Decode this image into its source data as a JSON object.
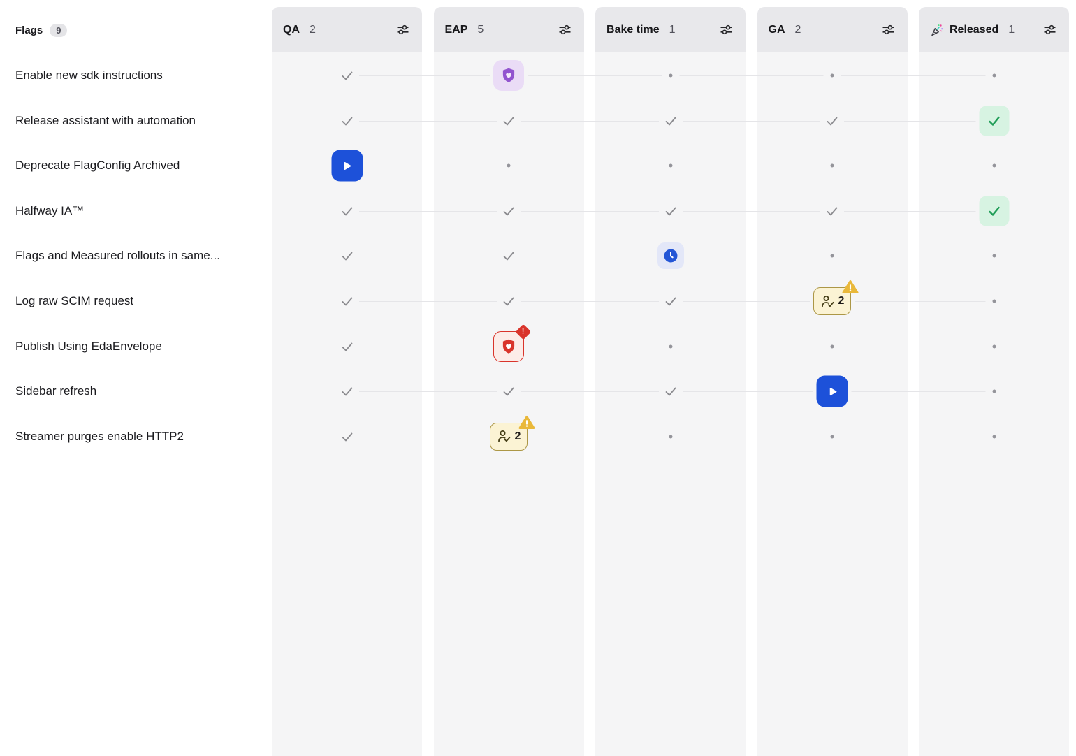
{
  "board": {
    "flags_header": {
      "label": "Flags",
      "count": "9"
    },
    "columns": [
      {
        "label": "QA",
        "count": "2",
        "icon": null
      },
      {
        "label": "EAP",
        "count": "5",
        "icon": null
      },
      {
        "label": "Bake time",
        "count": "1",
        "icon": null
      },
      {
        "label": "GA",
        "count": "2",
        "icon": null
      },
      {
        "label": "Released",
        "count": "1",
        "icon": "party-popper"
      }
    ],
    "rows": [
      {
        "name": "Enable new sdk instructions",
        "cells": [
          {
            "type": "check"
          },
          {
            "type": "shield-purple"
          },
          {
            "type": "dot"
          },
          {
            "type": "dot"
          },
          {
            "type": "dot"
          }
        ]
      },
      {
        "name": "Release assistant with automation",
        "cells": [
          {
            "type": "check"
          },
          {
            "type": "check"
          },
          {
            "type": "check"
          },
          {
            "type": "check"
          },
          {
            "type": "check-green"
          }
        ]
      },
      {
        "name": "Deprecate FlagConfig Archived",
        "cells": [
          {
            "type": "play"
          },
          {
            "type": "dot"
          },
          {
            "type": "dot"
          },
          {
            "type": "dot"
          },
          {
            "type": "dot"
          }
        ]
      },
      {
        "name": "Halfway IA™",
        "cells": [
          {
            "type": "check"
          },
          {
            "type": "check"
          },
          {
            "type": "check"
          },
          {
            "type": "check"
          },
          {
            "type": "check-green"
          }
        ]
      },
      {
        "name": "Flags and Measured rollouts in same...",
        "cells": [
          {
            "type": "check"
          },
          {
            "type": "check"
          },
          {
            "type": "clock"
          },
          {
            "type": "dot"
          },
          {
            "type": "dot"
          }
        ]
      },
      {
        "name": "Log raw SCIM request",
        "cells": [
          {
            "type": "check"
          },
          {
            "type": "check"
          },
          {
            "type": "check"
          },
          {
            "type": "approvals",
            "count": "2",
            "warning": true
          },
          {
            "type": "dot"
          }
        ]
      },
      {
        "name": "Publish Using EdaEnvelope",
        "cells": [
          {
            "type": "check"
          },
          {
            "type": "shield-red",
            "alert": true
          },
          {
            "type": "dot"
          },
          {
            "type": "dot"
          },
          {
            "type": "dot"
          }
        ]
      },
      {
        "name": "Sidebar refresh",
        "cells": [
          {
            "type": "check"
          },
          {
            "type": "check"
          },
          {
            "type": "check"
          },
          {
            "type": "play"
          },
          {
            "type": "dot"
          }
        ]
      },
      {
        "name": "Streamer purges enable HTTP2",
        "cells": [
          {
            "type": "check"
          },
          {
            "type": "approvals",
            "count": "2",
            "warning": true
          },
          {
            "type": "dot"
          },
          {
            "type": "dot"
          },
          {
            "type": "dot"
          }
        ]
      }
    ],
    "colors": {
      "accent_blue": "#1D51D9",
      "purple": "#9254CF",
      "purple_bg": "#EADCF6",
      "red": "#D9342B",
      "red_bg": "#FCECE8",
      "clock_blue": "#2456D6",
      "clock_bg": "#E3E7F8",
      "approvals_bg": "#FBF3D4",
      "approvals_border": "#AC9746",
      "warning_yellow": "#E9B83A",
      "green": "#1F9D57",
      "green_bg": "#D7F3E2",
      "gray_check": "#8A8A8E",
      "column_header_bg": "#E8E8EB",
      "column_body_bg": "#F5F5F6",
      "connector_line": "#E5E5E8"
    }
  }
}
